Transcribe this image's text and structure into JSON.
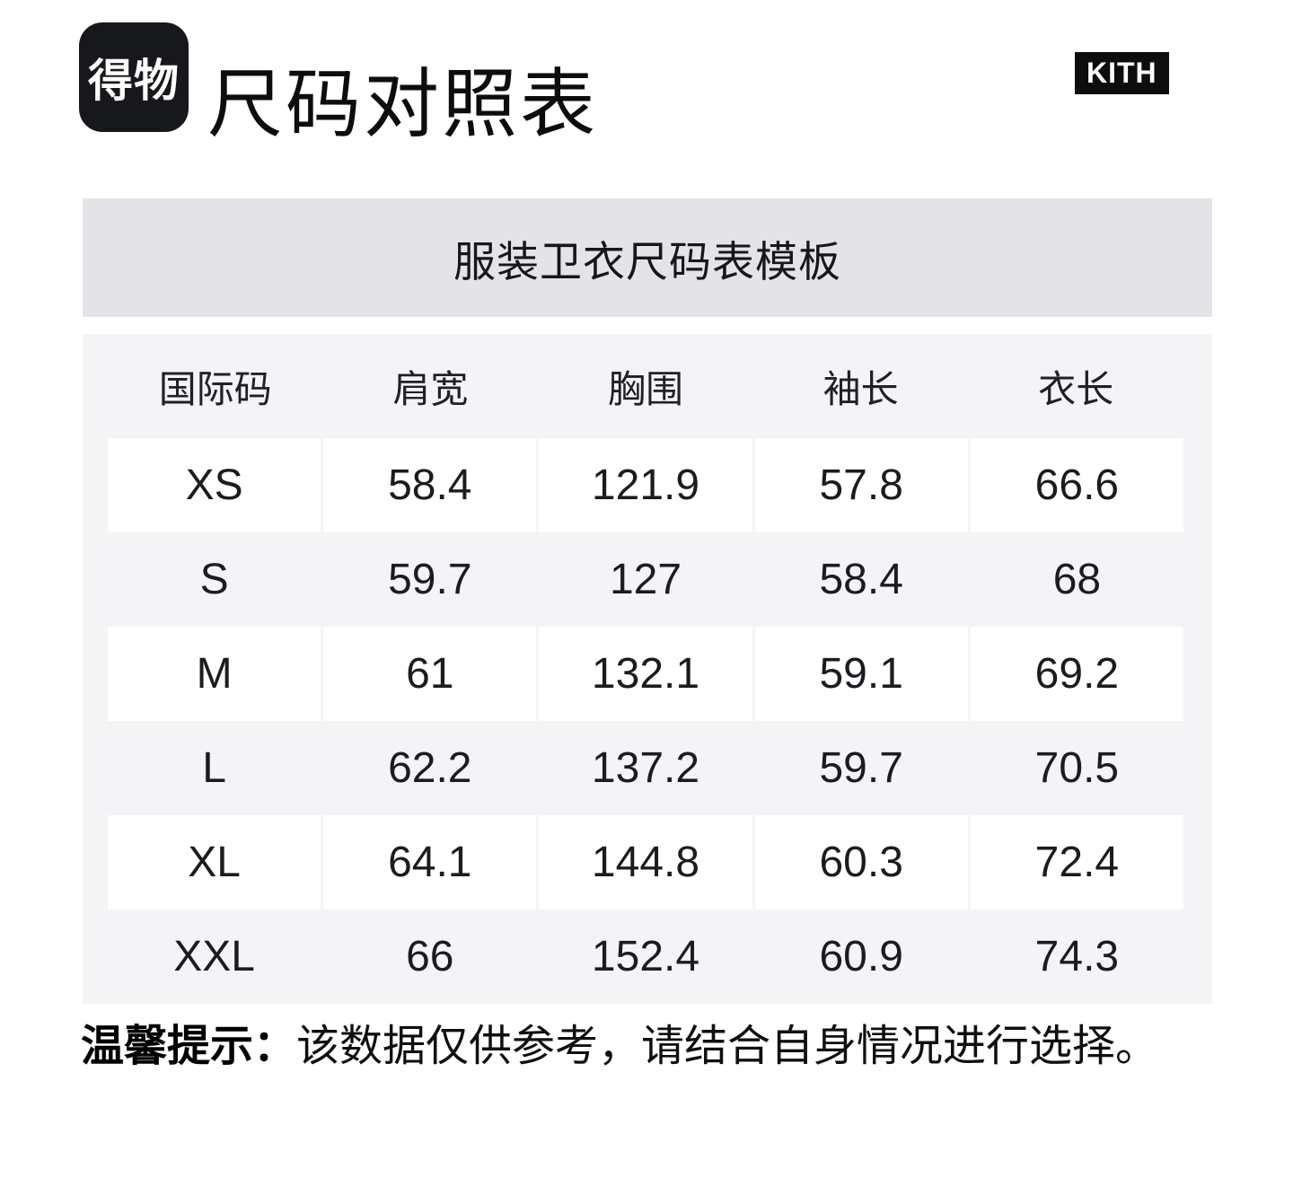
{
  "header": {
    "app_logo_text": "得物",
    "page_title": "尺码对照表",
    "brand_logo_text": "KITH"
  },
  "banner": {
    "title": "服装卫衣尺码表模板"
  },
  "size_table": {
    "columns": [
      "国际码",
      "肩宽",
      "胸围",
      "袖长",
      "衣长"
    ],
    "rows": [
      {
        "size": "XS",
        "values": [
          "58.4",
          "121.9",
          "57.8",
          "66.6"
        ]
      },
      {
        "size": "S",
        "values": [
          "59.7",
          "127",
          "58.4",
          "68"
        ]
      },
      {
        "size": "M",
        "values": [
          "61",
          "132.1",
          "59.1",
          "69.2"
        ]
      },
      {
        "size": "L",
        "values": [
          "62.2",
          "137.2",
          "59.7",
          "70.5"
        ]
      },
      {
        "size": "XL",
        "values": [
          "64.1",
          "144.8",
          "60.3",
          "72.4"
        ]
      },
      {
        "size": "XXL",
        "values": [
          "66",
          "152.4",
          "60.9",
          "74.3"
        ]
      }
    ]
  },
  "footer": {
    "notice_label": "温馨提示：",
    "notice_text": "该数据仅供参考，请结合自身情况进行选择。"
  },
  "colors": {
    "logo_bg": "#17181c",
    "brand_badge_bg": "#0d0d0d",
    "banner_bg": "#e3e3e8",
    "table_bg": "#f4f4f7",
    "row_cell_bg": "#ffffff",
    "text": "#1b1b20"
  }
}
